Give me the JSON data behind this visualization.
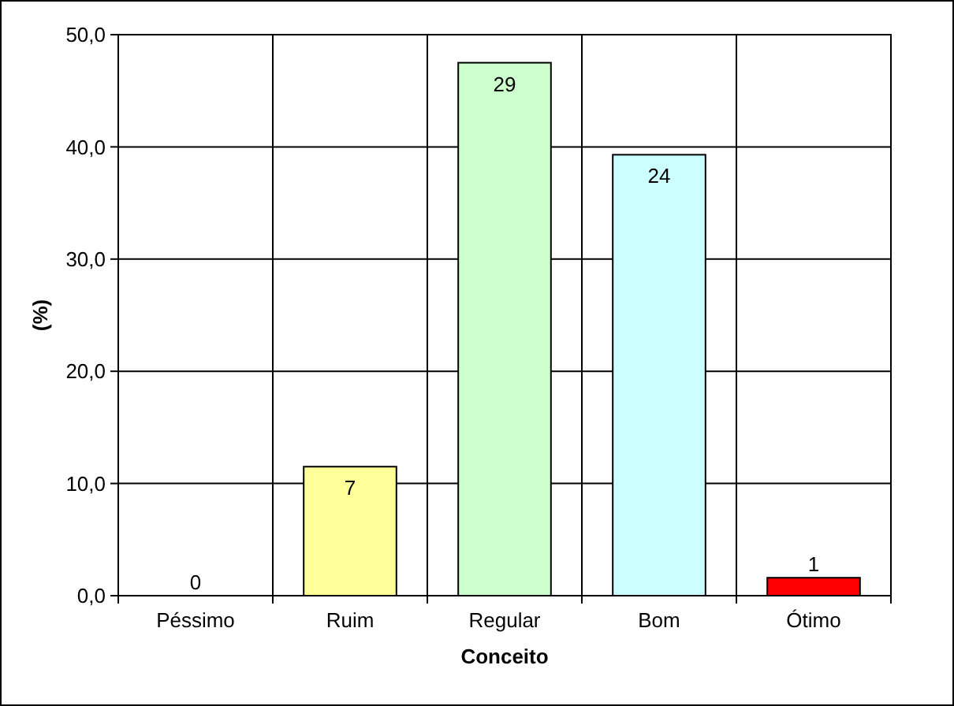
{
  "chart_data": {
    "type": "bar",
    "xlabel": "Conceito",
    "ylabel": "(%)",
    "categories": [
      "Péssimo",
      "Ruim",
      "Regular",
      "Bom",
      "Ótimo"
    ],
    "values": [
      0,
      11.5,
      47.5,
      39.3,
      1.6
    ],
    "colors": [
      "#9999ff",
      "#ffff99",
      "#ccffcc",
      "#ccffff",
      "#ff0000"
    ],
    "annotations": [
      {
        "text": "0",
        "x": "Péssimo",
        "y": 0
      },
      {
        "text": "7",
        "x": "Ruim",
        "y": 11.5
      },
      {
        "text": "29",
        "x": "Regular",
        "y": 47.5
      },
      {
        "text": "24",
        "x": "Bom",
        "y": 39.3
      },
      {
        "text": "1",
        "x": "Ótimo",
        "y": 1.6
      }
    ],
    "ylim": [
      0,
      50
    ],
    "yticks": [
      {
        "value": 0,
        "label": "0,0"
      },
      {
        "value": 10,
        "label": "10,0"
      },
      {
        "value": 20,
        "label": "20,0"
      },
      {
        "value": 30,
        "label": "30,0"
      },
      {
        "value": 40,
        "label": "40,0"
      },
      {
        "value": 50,
        "label": "50,0"
      }
    ],
    "grid": true
  }
}
